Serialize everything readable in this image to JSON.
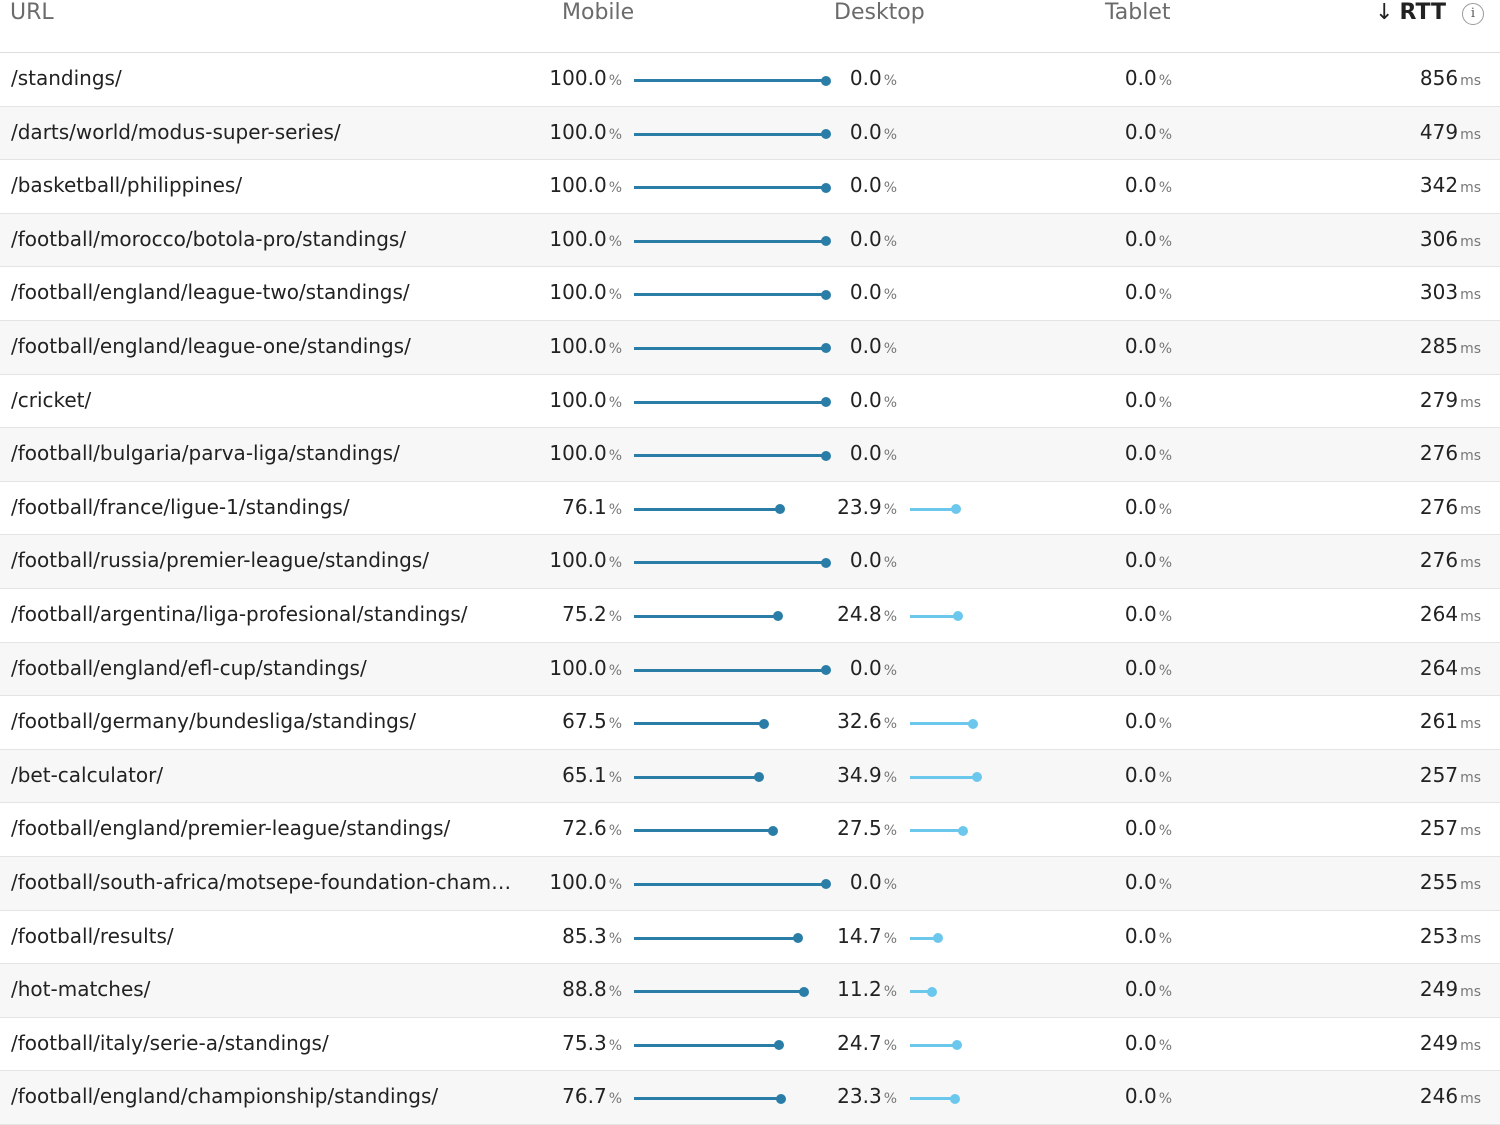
{
  "header": {
    "url": "URL",
    "mobile": "Mobile",
    "desktop": "Desktop",
    "tablet": "Tablet",
    "rtt": "RTT",
    "sort_arrow": "↓",
    "info": "i"
  },
  "units": {
    "pct": "%",
    "ms": "ms"
  },
  "colors": {
    "mobile_bar": "#2a7da6",
    "desktop_bar": "#6cc7ec"
  },
  "rows": [
    {
      "url": "/standings/",
      "mobile": "100.0",
      "desktop": "0.0",
      "tablet": "0.0",
      "rtt": "856",
      "mobile_pct": 100.0,
      "desktop_pct": 0.0
    },
    {
      "url": "/darts/world/modus-super-series/",
      "mobile": "100.0",
      "desktop": "0.0",
      "tablet": "0.0",
      "rtt": "479",
      "mobile_pct": 100.0,
      "desktop_pct": 0.0
    },
    {
      "url": "/basketball/philippines/",
      "mobile": "100.0",
      "desktop": "0.0",
      "tablet": "0.0",
      "rtt": "342",
      "mobile_pct": 100.0,
      "desktop_pct": 0.0
    },
    {
      "url": "/football/morocco/botola-pro/standings/",
      "mobile": "100.0",
      "desktop": "0.0",
      "tablet": "0.0",
      "rtt": "306",
      "mobile_pct": 100.0,
      "desktop_pct": 0.0
    },
    {
      "url": "/football/england/league-two/standings/",
      "mobile": "100.0",
      "desktop": "0.0",
      "tablet": "0.0",
      "rtt": "303",
      "mobile_pct": 100.0,
      "desktop_pct": 0.0
    },
    {
      "url": "/football/england/league-one/standings/",
      "mobile": "100.0",
      "desktop": "0.0",
      "tablet": "0.0",
      "rtt": "285",
      "mobile_pct": 100.0,
      "desktop_pct": 0.0
    },
    {
      "url": "/cricket/",
      "mobile": "100.0",
      "desktop": "0.0",
      "tablet": "0.0",
      "rtt": "279",
      "mobile_pct": 100.0,
      "desktop_pct": 0.0
    },
    {
      "url": "/football/bulgaria/parva-liga/standings/",
      "mobile": "100.0",
      "desktop": "0.0",
      "tablet": "0.0",
      "rtt": "276",
      "mobile_pct": 100.0,
      "desktop_pct": 0.0
    },
    {
      "url": "/football/france/ligue-1/standings/",
      "mobile": "76.1",
      "desktop": "23.9",
      "tablet": "0.0",
      "rtt": "276",
      "mobile_pct": 76.1,
      "desktop_pct": 23.9
    },
    {
      "url": "/football/russia/premier-league/standings/",
      "mobile": "100.0",
      "desktop": "0.0",
      "tablet": "0.0",
      "rtt": "276",
      "mobile_pct": 100.0,
      "desktop_pct": 0.0
    },
    {
      "url": "/football/argentina/liga-profesional/standings/",
      "mobile": "75.2",
      "desktop": "24.8",
      "tablet": "0.0",
      "rtt": "264",
      "mobile_pct": 75.2,
      "desktop_pct": 24.8
    },
    {
      "url": "/football/england/efl-cup/standings/",
      "mobile": "100.0",
      "desktop": "0.0",
      "tablet": "0.0",
      "rtt": "264",
      "mobile_pct": 100.0,
      "desktop_pct": 0.0
    },
    {
      "url": "/football/germany/bundesliga/standings/",
      "mobile": "67.5",
      "desktop": "32.6",
      "tablet": "0.0",
      "rtt": "261",
      "mobile_pct": 67.5,
      "desktop_pct": 32.6
    },
    {
      "url": "/bet-calculator/",
      "mobile": "65.1",
      "desktop": "34.9",
      "tablet": "0.0",
      "rtt": "257",
      "mobile_pct": 65.1,
      "desktop_pct": 34.9
    },
    {
      "url": "/football/england/premier-league/standings/",
      "mobile": "72.6",
      "desktop": "27.5",
      "tablet": "0.0",
      "rtt": "257",
      "mobile_pct": 72.6,
      "desktop_pct": 27.5
    },
    {
      "url": "/football/south-africa/motsepe-foundation-champion…",
      "mobile": "100.0",
      "desktop": "0.0",
      "tablet": "0.0",
      "rtt": "255",
      "mobile_pct": 100.0,
      "desktop_pct": 0.0
    },
    {
      "url": "/football/results/",
      "mobile": "85.3",
      "desktop": "14.7",
      "tablet": "0.0",
      "rtt": "253",
      "mobile_pct": 85.3,
      "desktop_pct": 14.7
    },
    {
      "url": "/hot-matches/",
      "mobile": "88.8",
      "desktop": "11.2",
      "tablet": "0.0",
      "rtt": "249",
      "mobile_pct": 88.8,
      "desktop_pct": 11.2
    },
    {
      "url": "/football/italy/serie-a/standings/",
      "mobile": "75.3",
      "desktop": "24.7",
      "tablet": "0.0",
      "rtt": "249",
      "mobile_pct": 75.3,
      "desktop_pct": 24.7
    },
    {
      "url": "/football/england/championship/standings/",
      "mobile": "76.7",
      "desktop": "23.3",
      "tablet": "0.0",
      "rtt": "246",
      "mobile_pct": 76.7,
      "desktop_pct": 23.3
    }
  ]
}
